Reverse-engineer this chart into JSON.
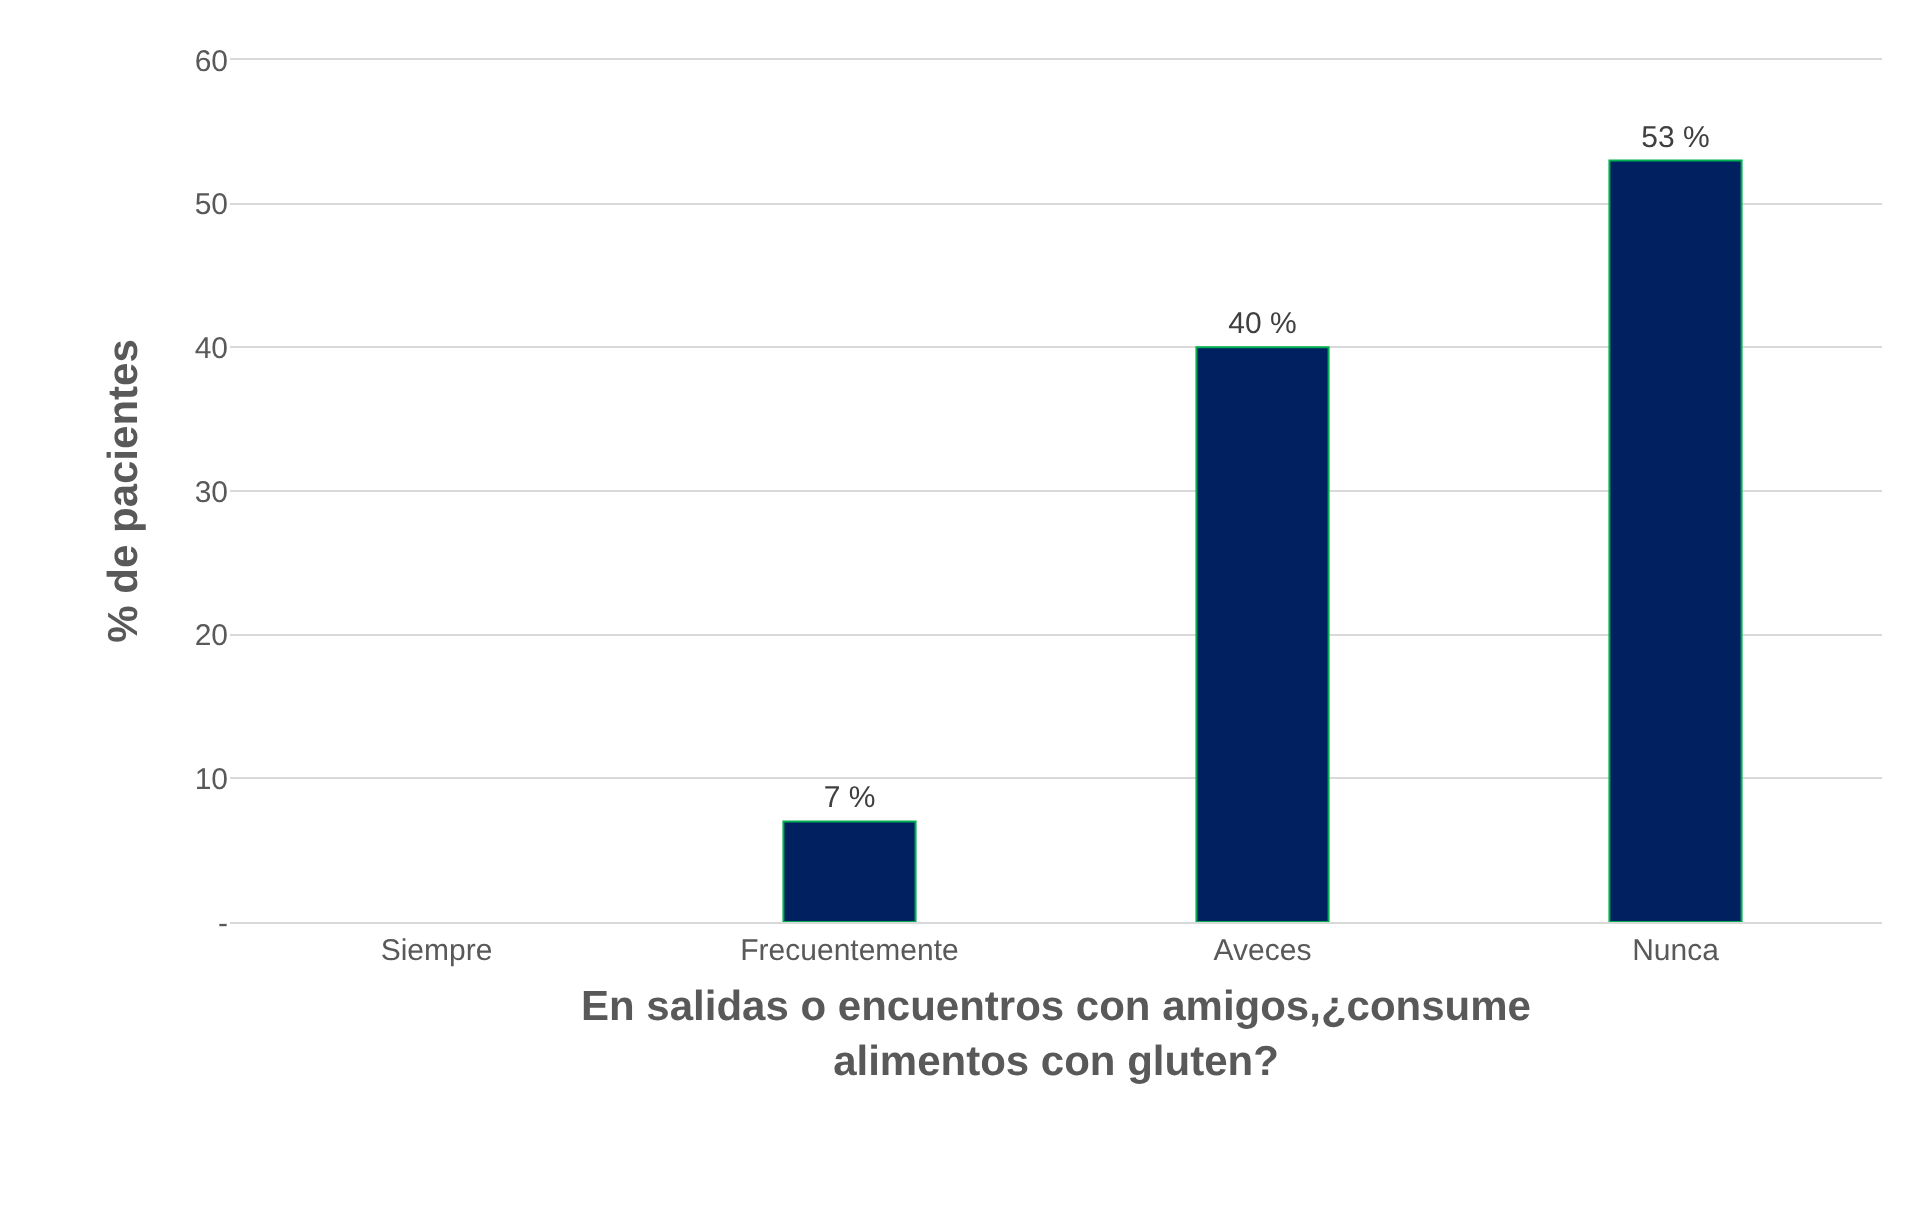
{
  "chart_data": {
    "type": "bar",
    "categories": [
      "Siempre",
      "Frecuentemente",
      "Aveces",
      "Nunca"
    ],
    "values": [
      0,
      7,
      40,
      53
    ],
    "value_labels": [
      null,
      "7 %",
      "40 %",
      "53 %"
    ],
    "color": "#002060",
    "xlabel": "En salidas o encuentros con amigos,¿consume\nalimentos con gluten?",
    "ylabel": "% de pacientes",
    "ylim": [
      0,
      60
    ],
    "yticks": [
      {
        "value": 0,
        "label": "-"
      },
      10,
      20,
      30,
      40,
      50,
      60
    ],
    "grid": "y"
  }
}
